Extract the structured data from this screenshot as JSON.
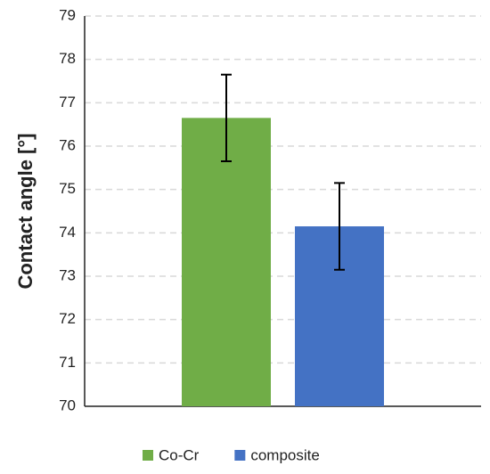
{
  "chart_data": {
    "type": "bar",
    "y_label": "Contact angle [°]",
    "categories": [
      null
    ],
    "series": [
      {
        "name": "Co-Cr",
        "color": "#70ad47",
        "values": [
          76.65
        ],
        "errors": [
          1.0
        ]
      },
      {
        "name": "composite",
        "color": "#4472c4",
        "values": [
          74.15
        ],
        "errors": [
          1.0
        ]
      }
    ],
    "ylim": [
      70,
      79
    ],
    "yticks": [
      70,
      71,
      72,
      73,
      74,
      75,
      76,
      77,
      78,
      79
    ],
    "grid": true,
    "legend": "bottom"
  }
}
